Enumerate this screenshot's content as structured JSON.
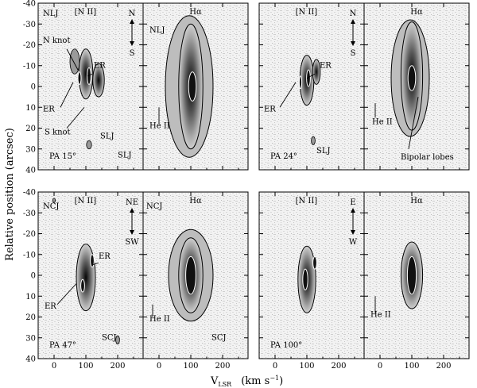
{
  "figure": {
    "ylabel": "Relative position (arcsec)",
    "xlabel_main": "V",
    "xlabel_sub": "LSR",
    "xlabel_units": "(km s",
    "xlabel_exp": "−1",
    "xlabel_close": ")"
  },
  "axes": {
    "x_ticks": [
      "0",
      "100",
      "200"
    ],
    "x_range": [
      -50,
      280
    ],
    "y_ticks": [
      "40",
      "30",
      "20",
      "10",
      "0",
      "-10",
      "-20",
      "-30",
      "-40"
    ],
    "y_range": [
      -40,
      40
    ],
    "y_inverted": true
  },
  "panels": [
    {
      "id": "p15-nii",
      "title": "[N II]",
      "pa": "PA 15°",
      "orient": [
        "N",
        "S"
      ],
      "labels": [
        {
          "t": "NLJ"
        },
        {
          "t": "N knot"
        },
        {
          "t": "ER"
        },
        {
          "t": "ER"
        },
        {
          "t": "S knot"
        },
        {
          "t": "SLJ"
        },
        {
          "t": "SLJ"
        }
      ]
    },
    {
      "id": "p15-ha",
      "title": "Hα",
      "labels": [
        {
          "t": "NLJ"
        },
        {
          "t": "He II"
        }
      ]
    },
    {
      "id": "p24-nii",
      "title": "[N II]",
      "pa": "PA 24°",
      "orient": [
        "N",
        "S"
      ],
      "labels": [
        {
          "t": "ER"
        },
        {
          "t": "ER"
        },
        {
          "t": "SLJ"
        }
      ]
    },
    {
      "id": "p24-ha",
      "title": "Hα",
      "labels": [
        {
          "t": "He II"
        },
        {
          "t": "Bipolar lobes"
        }
      ]
    },
    {
      "id": "p47-nii",
      "title": "[N II]",
      "pa": "PA 47°",
      "orient": [
        "NE",
        "SW"
      ],
      "labels": [
        {
          "t": "NCJ"
        },
        {
          "t": "ER"
        },
        {
          "t": "ER"
        },
        {
          "t": "SCJ"
        }
      ]
    },
    {
      "id": "p47-ha",
      "title": "Hα",
      "labels": [
        {
          "t": "NCJ"
        },
        {
          "t": "He II"
        },
        {
          "t": "SCJ"
        }
      ]
    },
    {
      "id": "p100-nii",
      "title": "[N II]",
      "pa": "PA 100°",
      "orient": [
        "E",
        "W"
      ],
      "labels": []
    },
    {
      "id": "p100-ha",
      "title": "Hα",
      "labels": [
        {
          "t": "He II"
        }
      ]
    }
  ],
  "colors": {
    "frame": "#000000",
    "background_noise": "#d8d8d8",
    "emission_dark": "#1a1a1a"
  }
}
